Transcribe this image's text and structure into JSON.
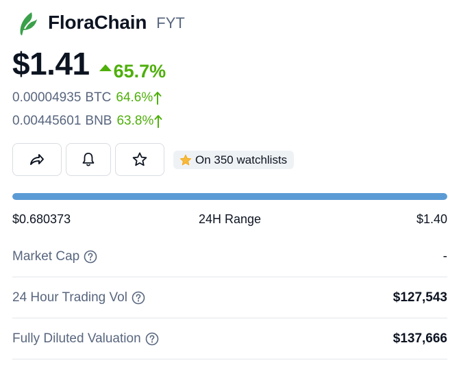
{
  "coin": {
    "name": "FloraChain",
    "symbol": "FYT",
    "price": "$1.41",
    "change_pct": "65.7%",
    "change_direction": "up"
  },
  "conversions": [
    {
      "value": "0.00004935",
      "unit": "BTC",
      "change": "64.6%"
    },
    {
      "value": "0.00445601",
      "unit": "BNB",
      "change": "63.8%"
    }
  ],
  "actions": {
    "share_icon": "share-icon",
    "bell_icon": "bell-icon",
    "star_icon": "star-icon",
    "watchlist_label": "On 350 watchlists"
  },
  "range": {
    "low": "$0.680373",
    "label": "24H Range",
    "high": "$1.40",
    "position_fraction": 1.0
  },
  "stats": [
    {
      "label": "Market Cap",
      "value": "-"
    },
    {
      "label": "24 Hour Trading Vol",
      "value": "$127,543"
    },
    {
      "label": "Fully Diluted Valuation",
      "value": "$137,666"
    }
  ],
  "colors": {
    "positive": "#4eaf0a",
    "range_fill": "#5b9bd5",
    "brand_logo": "#3aa04a",
    "text_primary": "#0d1421",
    "text_secondary": "#58667e"
  }
}
